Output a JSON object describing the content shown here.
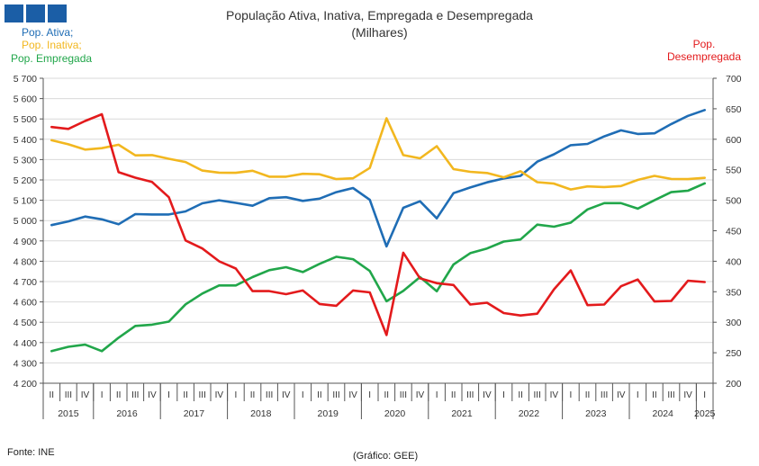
{
  "header": {
    "title": "População Ativa, Inativa, Empregada e Desempregada",
    "subtitle": "(Milhares)"
  },
  "legend": {
    "ativa": "Pop. Ativa;",
    "inativa": "Pop. Inativa;",
    "empregada": "Pop. Empregada",
    "desempregada_line1": "Pop.",
    "desempregada_line2": "Desempregada"
  },
  "footer": {
    "source": "Fonte: INE",
    "credit": "(Gráfico: GEE)"
  },
  "colors": {
    "ativa": "#1f6db5",
    "inativa": "#f2b71f",
    "empregada": "#21a64a",
    "desempregada": "#e31a1c",
    "logo": "#1b5ea6"
  },
  "chart_data": {
    "type": "line",
    "title": "População Ativa, Inativa, Empregada e Desempregada",
    "subtitle": "(Milhares)",
    "x": [
      "2015 II",
      "2015 III",
      "2015 IV",
      "2016 I",
      "2016 II",
      "2016 III",
      "2016 IV",
      "2017 I",
      "2017 II",
      "2017 III",
      "2017 IV",
      "2018 I",
      "2018 II",
      "2018 III",
      "2018 IV",
      "2019 I",
      "2019 II",
      "2019 III",
      "2019 IV",
      "2020 I",
      "2020 II",
      "2020 III",
      "2020 IV",
      "2021 I",
      "2021 II",
      "2021 III",
      "2021 IV",
      "2022 I",
      "2022 II",
      "2022 III",
      "2022 IV",
      "2023 I",
      "2023 II",
      "2023 III",
      "2023 IV",
      "2024 I",
      "2024 II",
      "2024 III",
      "2024 IV",
      "2025 I"
    ],
    "quarter_labels": [
      "II",
      "III",
      "IV",
      "I",
      "II",
      "III",
      "IV",
      "I",
      "II",
      "III",
      "IV",
      "I",
      "II",
      "III",
      "IV",
      "I",
      "II",
      "III",
      "IV",
      "I",
      "II",
      "III",
      "IV",
      "I",
      "II",
      "III",
      "IV",
      "I",
      "II",
      "III",
      "IV",
      "I",
      "II",
      "III",
      "IV",
      "I",
      "II",
      "III",
      "IV",
      "I"
    ],
    "year_labels": [
      {
        "label": "2015",
        "start": 0,
        "count": 3
      },
      {
        "label": "2016",
        "start": 3,
        "count": 4
      },
      {
        "label": "2017",
        "start": 7,
        "count": 4
      },
      {
        "label": "2018",
        "start": 11,
        "count": 4
      },
      {
        "label": "2019",
        "start": 15,
        "count": 4
      },
      {
        "label": "2020",
        "start": 19,
        "count": 4
      },
      {
        "label": "2021",
        "start": 23,
        "count": 4
      },
      {
        "label": "2022",
        "start": 27,
        "count": 4
      },
      {
        "label": "2023",
        "start": 31,
        "count": 4
      },
      {
        "label": "2024",
        "start": 35,
        "count": 4
      },
      {
        "label": "2025",
        "start": 39,
        "count": 1
      }
    ],
    "y_left": {
      "min": 4200,
      "max": 5700,
      "step": 100,
      "ticks": [
        "4 200",
        "4 300",
        "4 400",
        "4 500",
        "4 600",
        "4 700",
        "4 800",
        "4 900",
        "5 000",
        "5 100",
        "5 200",
        "5 300",
        "5 400",
        "5 500",
        "5 600",
        "5 700"
      ]
    },
    "y_right": {
      "min": 200,
      "max": 700,
      "step": 50,
      "ticks": [
        "200",
        "250",
        "300",
        "350",
        "400",
        "450",
        "500",
        "550",
        "600",
        "650",
        "700"
      ]
    },
    "grid": "horizontal",
    "series": [
      {
        "name": "Pop. Ativa",
        "axis": "left",
        "color": "#1f6db5",
        "values": [
          4978,
          4996,
          5020,
          5006,
          4982,
          5032,
          5030,
          5030,
          5045,
          5085,
          5100,
          5087,
          5073,
          5110,
          5115,
          5097,
          5108,
          5140,
          5160,
          5102,
          4873,
          5063,
          5095,
          5011,
          5135,
          5163,
          5188,
          5207,
          5220,
          5290,
          5326,
          5371,
          5377,
          5414,
          5444,
          5426,
          5429,
          5475,
          5515,
          5544
        ]
      },
      {
        "name": "Pop. Inativa",
        "axis": "left",
        "color": "#f2b71f",
        "values": [
          5395,
          5375,
          5349,
          5356,
          5373,
          5321,
          5322,
          5304,
          5288,
          5246,
          5236,
          5235,
          5245,
          5216,
          5216,
          5230,
          5228,
          5204,
          5208,
          5259,
          5503,
          5322,
          5306,
          5366,
          5253,
          5240,
          5234,
          5213,
          5243,
          5189,
          5182,
          5153,
          5168,
          5165,
          5170,
          5200,
          5220,
          5205,
          5204,
          5210
        ]
      },
      {
        "name": "Pop. Empregada",
        "axis": "left",
        "color": "#21a64a",
        "values": [
          4358,
          4379,
          4390,
          4358,
          4424,
          4482,
          4488,
          4503,
          4588,
          4641,
          4681,
          4681,
          4722,
          4756,
          4771,
          4747,
          4787,
          4822,
          4810,
          4752,
          4603,
          4654,
          4722,
          4652,
          4784,
          4840,
          4863,
          4897,
          4907,
          4980,
          4970,
          4990,
          5055,
          5086,
          5086,
          5059,
          5100,
          5140,
          5147,
          5183
        ]
      },
      {
        "name": "Pop. Desempregada",
        "axis": "right",
        "color": "#e31a1c",
        "values": [
          620,
          617,
          630,
          641,
          546,
          537,
          530,
          505,
          434,
          421,
          400,
          388,
          351,
          351,
          346,
          352,
          330,
          327,
          352,
          349,
          279,
          414,
          372,
          364,
          361,
          329,
          332,
          315,
          311,
          314,
          354,
          385,
          328,
          329,
          359,
          370,
          334,
          335,
          368,
          366
        ]
      }
    ]
  }
}
